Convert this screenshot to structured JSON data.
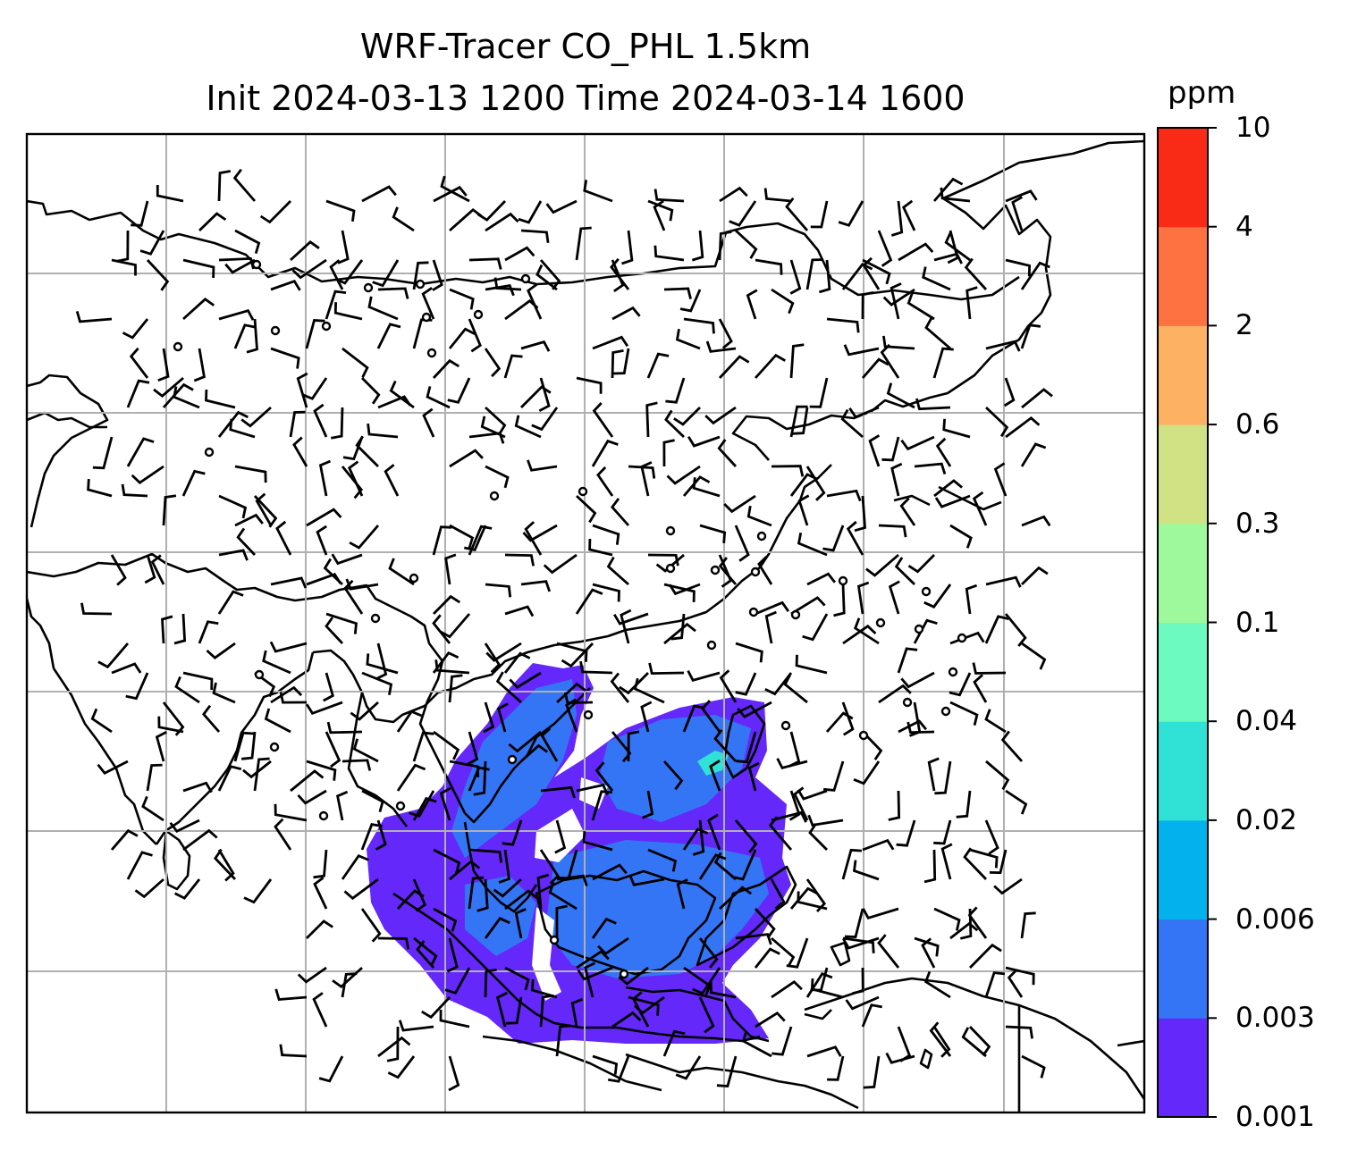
{
  "title": {
    "line1": "WRF-Tracer CO_PHL 1.5km",
    "line2": "Init 2024-03-13 1200 Time 2024-03-14 1600"
  },
  "colorbar": {
    "unit": "ppm",
    "levels": [
      "0.001",
      "0.003",
      "0.006",
      "0.02",
      "0.04",
      "0.1",
      "0.3",
      "0.6",
      "2",
      "4",
      "10"
    ],
    "colors": [
      "#6428fa",
      "#3475f5",
      "#03b1ec",
      "#30e2d6",
      "#6dfac0",
      "#9ef99c",
      "#d0e284",
      "#fdb163",
      "#fe7141",
      "#f92a16"
    ]
  },
  "chart_data": {
    "type": "heatmap",
    "variable": "CO_PHL tracer concentration",
    "unit": "ppm",
    "contour_levels": [
      0.001,
      0.003,
      0.006,
      0.02,
      0.04,
      0.1,
      0.3,
      0.6,
      2,
      4,
      10
    ],
    "grid": true,
    "legend_placement": "right colorbar",
    "overlays": [
      "coastlines",
      "country borders",
      "wind barbs"
    ]
  }
}
